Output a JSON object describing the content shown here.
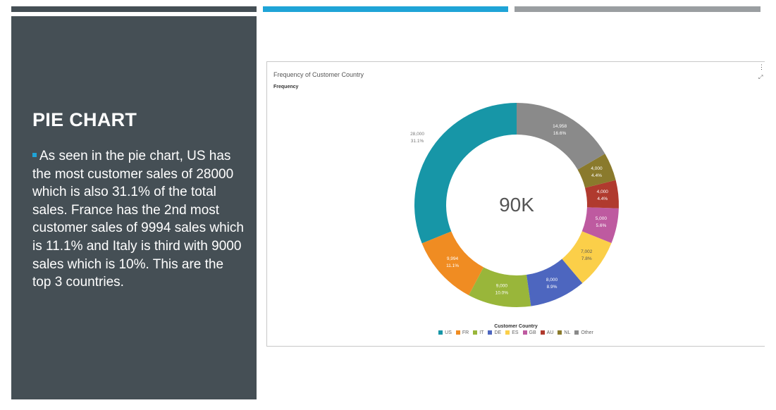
{
  "slide": {
    "title": "PIE CHART",
    "body": "As seen in the pie chart, US has the most customer sales of 28000 which is also 31.1% of the total sales. France has the 2nd most customer sales of 9994 sales which is 11.1% and Italy is third with 9000 sales which is 10%. This are the top 3 countries."
  },
  "chart_data": {
    "type": "pie",
    "title": "Frequency of Customer Country",
    "measure_label": "Frequency",
    "legend_title": "Customer Country",
    "legend_position": "bottom",
    "center_label": "90K",
    "total": 90000,
    "slices": [
      {
        "category": "US",
        "value": 28000,
        "value_label": "28,000",
        "percent_label": "31.1%",
        "color": "#1796a7"
      },
      {
        "category": "FR",
        "value": 9994,
        "value_label": "9,994",
        "percent_label": "11.1%",
        "color": "#f08c22"
      },
      {
        "category": "IT",
        "value": 9000,
        "value_label": "9,000",
        "percent_label": "10.0%",
        "color": "#99b63a"
      },
      {
        "category": "DE",
        "value": 8000,
        "value_label": "8,000",
        "percent_label": "8.9%",
        "color": "#4d66bf"
      },
      {
        "category": "ES",
        "value": 7002,
        "value_label": "7,002",
        "percent_label": "7.8%",
        "color": "#fbcf49"
      },
      {
        "category": "GB",
        "value": 5000,
        "value_label": "5,000",
        "percent_label": "5.6%",
        "color": "#be5aa0"
      },
      {
        "category": "AU",
        "value": 4000,
        "value_label": "4,000",
        "percent_label": "4.4%",
        "color": "#b03a2e"
      },
      {
        "category": "NL",
        "value": 4000,
        "value_label": "4,000",
        "percent_label": "4.4%",
        "color": "#8a7a2c"
      },
      {
        "category": "Other",
        "value": 14958,
        "value_label": "14,958",
        "percent_label": "16.6%",
        "color": "#8a8a8a"
      }
    ]
  }
}
